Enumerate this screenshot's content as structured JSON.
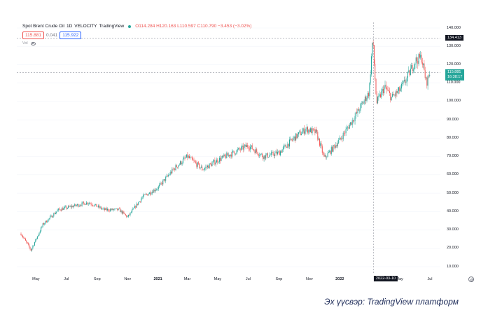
{
  "legend": {
    "symbol": "Spot Brent Crude Oil",
    "interval": "1D",
    "source": "VELOCITY",
    "platform": "TradingView",
    "ohlc": "O114.284 H120.163 L110.597 C110.790 −3.453 (−3.02%)"
  },
  "prices": {
    "sell": "115.881",
    "spread": "0.041",
    "buy": "115.922"
  },
  "volume": {
    "label": "Vol"
  },
  "axis": {
    "price_ticks": [
      "140.000",
      "130.000",
      "120.000",
      "110.000",
      "100.000",
      "90.000",
      "80.000",
      "70.000",
      "60.000",
      "50.000",
      "40.000",
      "30.000",
      "20.000",
      "10.000"
    ],
    "time_ticks": [
      "May",
      "Jul",
      "Sep",
      "Nov",
      "2021",
      "Mar",
      "May",
      "Jul",
      "Sep",
      "Nov",
      "2022",
      "May",
      "Jul"
    ],
    "crosshair_price": "134.413",
    "crosshair_date": "2022-03-10",
    "last_price": "115.881",
    "countdown": "16:38:17"
  },
  "colors": {
    "up": "#26a69a",
    "down": "#ef5350",
    "grid": "#f0f3fa",
    "text": "#131722"
  },
  "caption": "Эх үүсвэр: TradingView платформ",
  "chart_data": {
    "type": "line",
    "title": "",
    "xlabel": "",
    "ylabel": "",
    "ylim": [
      10,
      140
    ],
    "x": [
      "2020-04-01",
      "2020-04-21",
      "2020-05-15",
      "2020-06-15",
      "2020-07-15",
      "2020-08-15",
      "2020-09-15",
      "2020-10-15",
      "2020-11-01",
      "2020-12-01",
      "2021-01-01",
      "2021-02-01",
      "2021-03-01",
      "2021-04-01",
      "2021-05-01",
      "2021-06-01",
      "2021-07-01",
      "2021-08-01",
      "2021-09-01",
      "2021-10-01",
      "2021-10-25",
      "2021-11-15",
      "2021-12-01",
      "2022-01-01",
      "2022-02-01",
      "2022-03-01",
      "2022-03-08",
      "2022-03-16",
      "2022-04-01",
      "2022-04-15",
      "2022-05-01",
      "2022-05-15",
      "2022-06-01",
      "2022-06-14",
      "2022-06-24",
      "2022-07-01"
    ],
    "series": [
      {
        "values": [
          28,
          19,
          33,
          41,
          43,
          45,
          41,
          41,
          37,
          48,
          53,
          63,
          70,
          63,
          68,
          72,
          76,
          70,
          72,
          80,
          85,
          83,
          69,
          79,
          92,
          105,
          134,
          99,
          108,
          102,
          106,
          112,
          122,
          124,
          110,
          115.9
        ]
      }
    ]
  }
}
